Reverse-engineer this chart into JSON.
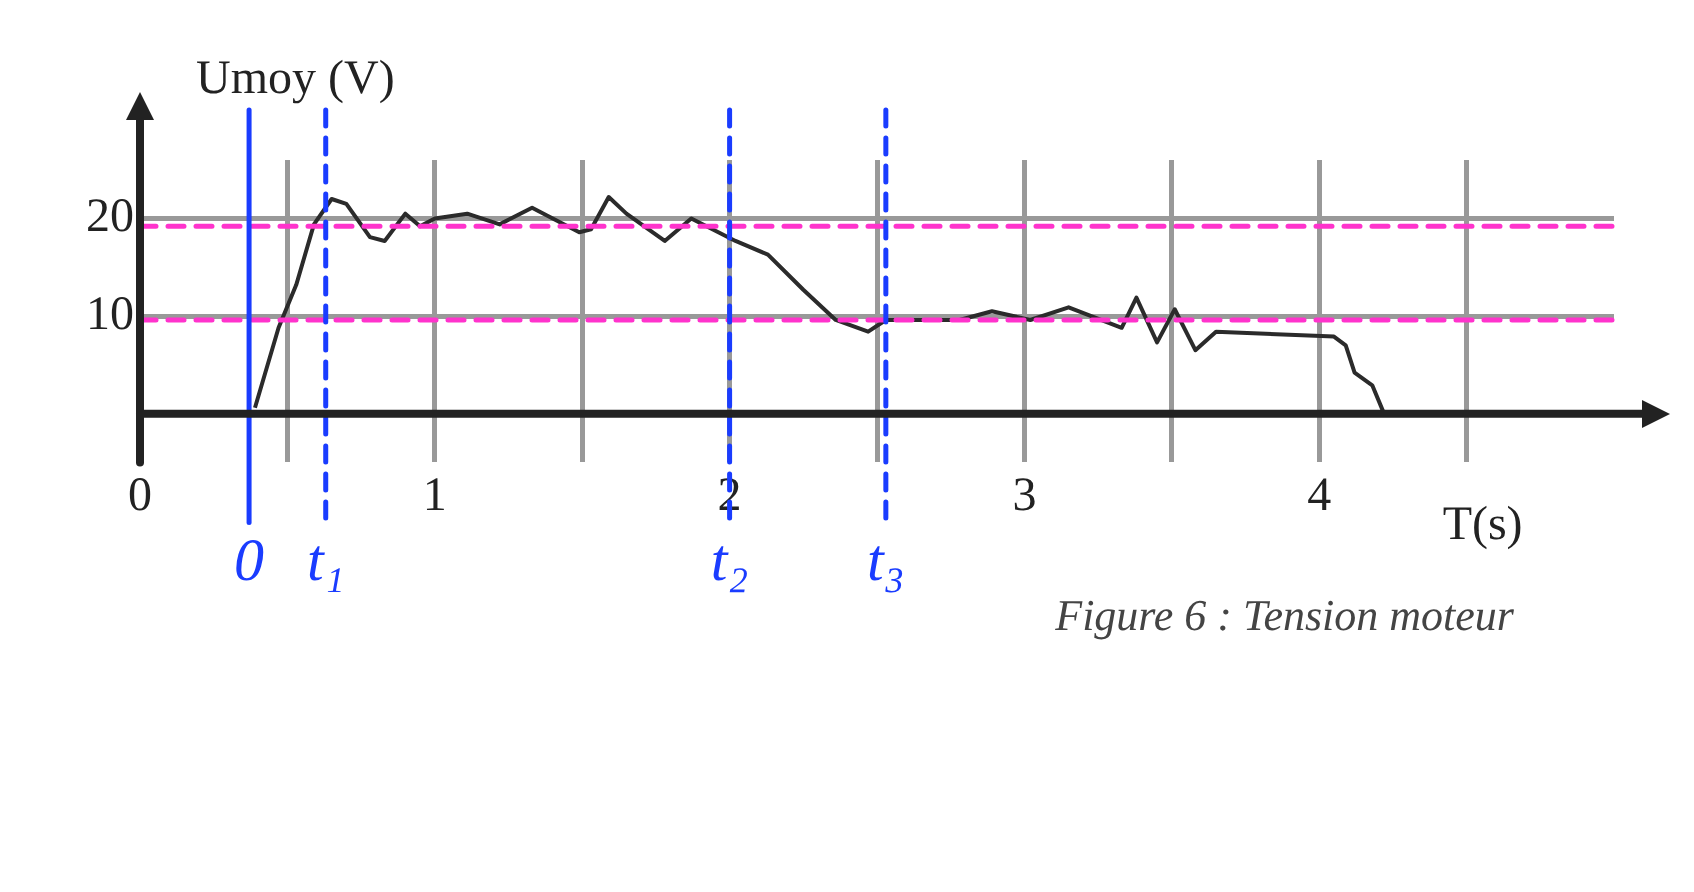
{
  "chart_data": {
    "type": "line",
    "xlabel": "T(s)",
    "ylabel": "Umoy (V)",
    "annotations": [
      "Figure 6 : Tension moteur"
    ],
    "series": [
      {
        "color": "#2b2b2b",
        "x": [
          0.39,
          0.47,
          0.53,
          0.59,
          0.65,
          0.7,
          0.78,
          0.83,
          0.9,
          0.95,
          1.0,
          1.11,
          1.22,
          1.33,
          1.4,
          1.49,
          1.53,
          1.59,
          1.65,
          1.78,
          1.87,
          2.02,
          2.13,
          2.25,
          2.36,
          2.47,
          2.53,
          2.78,
          2.89,
          3.02,
          3.15,
          3.33,
          3.38,
          3.45,
          3.51,
          3.58,
          3.65,
          4.05,
          4.09,
          4.12,
          4.18,
          4.22,
          4.33
        ],
        "values": [
          0.6,
          8.8,
          13.2,
          19.4,
          22,
          21.5,
          18.1,
          17.7,
          20.5,
          19.2,
          20,
          20.5,
          19.4,
          21.1,
          20,
          18.6,
          18.9,
          22.2,
          20.5,
          17.7,
          20,
          17.7,
          16.3,
          12.7,
          9.6,
          8.4,
          9.6,
          9.6,
          10.5,
          9.6,
          10.9,
          8.8,
          11.9,
          7.3,
          10.7,
          6.5,
          8.4,
          7.9,
          7.0,
          4.2,
          2.9,
          0,
          0
        ]
      }
    ],
    "xlim": [
      0,
      5
    ],
    "ylim": [
      -5,
      26
    ],
    "xticks": [
      0,
      {
        "value": 0.5,
        "label": null
      },
      1,
      {
        "value": 1.5,
        "label": null
      },
      2,
      {
        "value": 2.5,
        "label": null
      },
      3,
      {
        "value": 3.5,
        "label": null
      },
      4,
      {
        "value": 4.5,
        "label": null
      }
    ],
    "yticks": [
      10,
      20
    ],
    "grid": true,
    "marker": "none",
    "line_style": "solid",
    "ref_lines": [
      {
        "axis": "y",
        "value": 19.2,
        "color": "#ff33cc",
        "line_style": "dashed"
      },
      {
        "axis": "y",
        "value": 9.6,
        "color": "#ff33cc",
        "line_style": "dashed"
      },
      {
        "axis": "x",
        "value": 0.37,
        "label": "0",
        "color": "#1a3cff",
        "line_style": "solid"
      },
      {
        "axis": "x",
        "value": 0.63,
        "label": "t₁",
        "color": "#1a3cff",
        "line_style": "dashed"
      },
      {
        "axis": "x",
        "value": 2.0,
        "label": "t₂",
        "color": "#1a3cff",
        "line_style": "dashed"
      },
      {
        "axis": "x",
        "value": 2.53,
        "label": "t₃",
        "color": "#1a3cff",
        "line_style": "dashed"
      }
    ]
  }
}
